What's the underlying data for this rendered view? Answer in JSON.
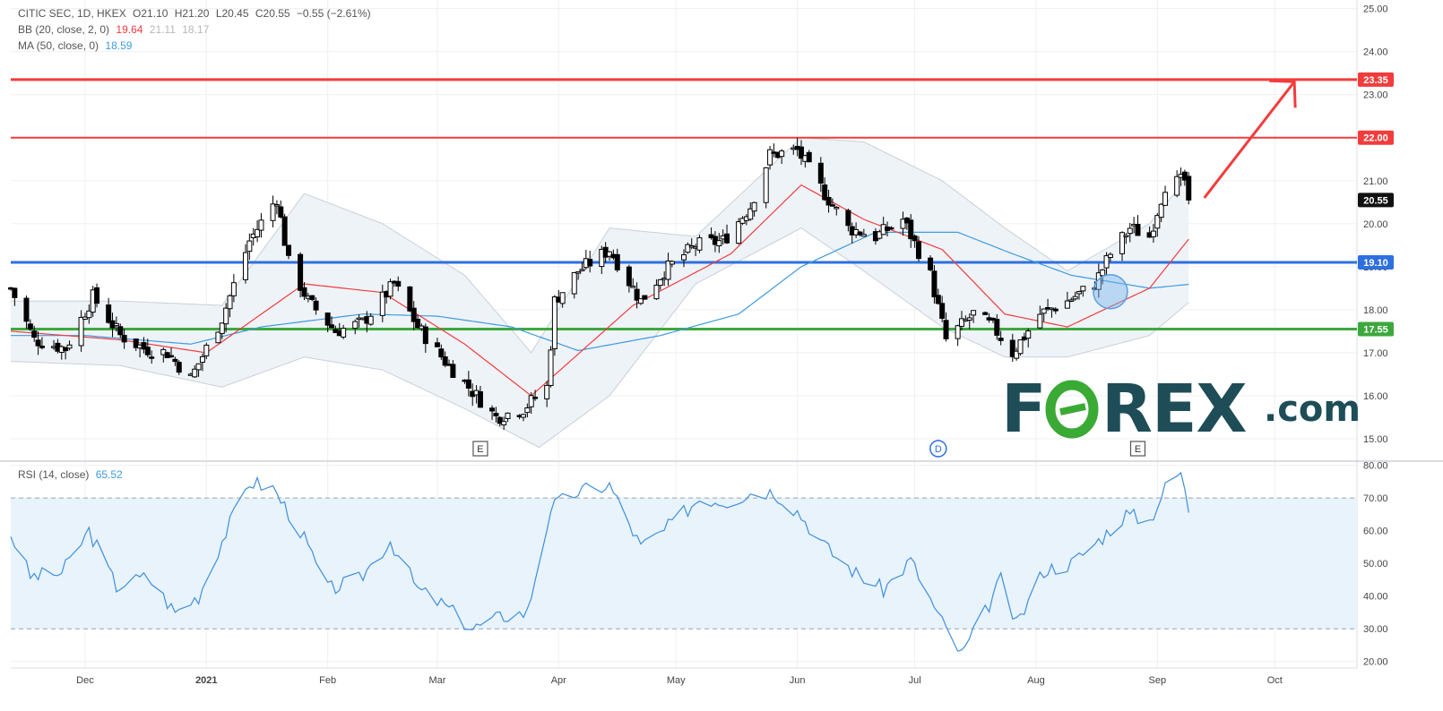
{
  "header": {
    "symbol": "CITIC SEC, 1D, HKEX",
    "open": "O21.10",
    "high": "H21.20",
    "low": "L20.45",
    "close": "C20.55",
    "change": "−0.55 (−2.61%)",
    "bb_label": "BB (20, close, 2, 0)",
    "bb_basis": "19.64",
    "bb_upper": "21.11",
    "bb_lower": "18.17",
    "ma_label": "MA (50, close, 0)",
    "ma_value": "18.59",
    "rsi_label": "RSI (14, close)",
    "rsi_value": "65.52"
  },
  "logo": {
    "part1": "F",
    "part2": "REX",
    "part3": ".com"
  },
  "colors": {
    "up": "#ffffff",
    "down": "#000000",
    "wick": "#000000",
    "resistance": "#f23c3c",
    "pivot": "#2e6fe0",
    "support": "#3ea83e",
    "bb_basis": "#f23c3c",
    "ma": "#3d9be0",
    "bb_fill": "#eef3f8",
    "rsi_line": "#3f8fdc",
    "rsi_fill": "#e8f3fc",
    "arrow": "#f23c3c",
    "logo": "#1e4d57",
    "logo_o": "#3aaa35"
  },
  "chart_data": {
    "type": "candlestick",
    "title": "CITIC SEC, 1D, HKEX",
    "ylim": [
      14.5,
      25.2
    ],
    "y_ticks": [
      "15.00",
      "16.00",
      "17.00",
      "18.00",
      "19.00",
      "20.00",
      "21.00",
      "22.00",
      "23.00",
      "24.00",
      "25.00"
    ],
    "x_labels": [
      "Dec",
      "2021",
      "Feb",
      "Mar",
      "Apr",
      "May",
      "Jun",
      "Jul",
      "Aug",
      "Sep",
      "Oct"
    ],
    "last_price": "20.55",
    "horizontal_levels": [
      {
        "value": "23.35",
        "color": "#f23c3c"
      },
      {
        "value": "22.00",
        "color": "#f23c3c"
      },
      {
        "value": "19.10",
        "color": "#2e6fe0"
      },
      {
        "value": "17.55",
        "color": "#3ea83e"
      }
    ],
    "event_markers": [
      {
        "label": "E",
        "date": "2021-03-12"
      },
      {
        "label": "D",
        "date": "2021-07-07"
      },
      {
        "label": "E",
        "date": "2021-08-27"
      }
    ],
    "price_keypoints": [
      [
        "2020-11-12",
        18.5
      ],
      [
        "2020-11-18",
        17.3
      ],
      [
        "2020-11-26",
        17.1
      ],
      [
        "2020-12-03",
        18.3
      ],
      [
        "2020-12-10",
        17.4
      ],
      [
        "2020-12-16",
        17.1
      ],
      [
        "2020-12-22",
        17.0
      ],
      [
        "2020-12-28",
        16.4
      ],
      [
        "2021-01-05",
        17.8
      ],
      [
        "2021-01-12",
        19.6
      ],
      [
        "2021-01-19",
        20.6
      ],
      [
        "2021-01-22",
        19.1
      ],
      [
        "2021-01-27",
        18.2
      ],
      [
        "2021-02-03",
        17.5
      ],
      [
        "2021-02-10",
        17.7
      ],
      [
        "2021-02-18",
        18.6
      ],
      [
        "2021-02-24",
        17.6
      ],
      [
        "2021-03-03",
        16.8
      ],
      [
        "2021-03-09",
        16.2
      ],
      [
        "2021-03-16",
        15.5
      ],
      [
        "2021-03-23",
        15.7
      ],
      [
        "2021-03-29",
        16.2
      ],
      [
        "2021-03-31",
        18.2
      ],
      [
        "2021-04-06",
        18.9
      ],
      [
        "2021-04-14",
        19.4
      ],
      [
        "2021-04-22",
        18.2
      ],
      [
        "2021-04-28",
        18.9
      ],
      [
        "2021-05-06",
        19.5
      ],
      [
        "2021-05-13",
        19.6
      ],
      [
        "2021-05-20",
        20.4
      ],
      [
        "2021-05-25",
        21.6
      ],
      [
        "2021-06-01",
        21.7
      ],
      [
        "2021-06-08",
        20.7
      ],
      [
        "2021-06-14",
        19.9
      ],
      [
        "2021-06-21",
        19.7
      ],
      [
        "2021-06-28",
        20.1
      ],
      [
        "2021-07-05",
        18.8
      ],
      [
        "2021-07-09",
        17.3
      ],
      [
        "2021-07-16",
        17.9
      ],
      [
        "2021-07-21",
        17.6
      ],
      [
        "2021-07-26",
        17.0
      ],
      [
        "2021-08-02",
        17.9
      ],
      [
        "2021-08-09",
        18.2
      ],
      [
        "2021-08-16",
        18.6
      ],
      [
        "2021-08-20",
        19.3
      ],
      [
        "2021-08-25",
        19.9
      ],
      [
        "2021-08-30",
        19.7
      ],
      [
        "2021-09-03",
        20.9
      ],
      [
        "2021-09-08",
        21.0
      ],
      [
        "2021-09-09",
        20.55
      ]
    ],
    "ma50_keypoints": [
      [
        "2020-11-12",
        17.4
      ],
      [
        "2020-12-01",
        17.4
      ],
      [
        "2020-12-28",
        17.2
      ],
      [
        "2021-01-15",
        17.6
      ],
      [
        "2021-02-10",
        17.9
      ],
      [
        "2021-03-01",
        17.85
      ],
      [
        "2021-03-20",
        17.6
      ],
      [
        "2021-04-06",
        17.05
      ],
      [
        "2021-04-27",
        17.4
      ],
      [
        "2021-05-17",
        17.9
      ],
      [
        "2021-06-02",
        19.0
      ],
      [
        "2021-06-21",
        19.8
      ],
      [
        "2021-07-12",
        19.8
      ],
      [
        "2021-07-26",
        19.3
      ],
      [
        "2021-08-10",
        18.8
      ],
      [
        "2021-08-30",
        18.5
      ],
      [
        "2021-09-09",
        18.59
      ]
    ],
    "bb_basis_keypoints": [
      [
        "2020-11-12",
        17.5
      ],
      [
        "2020-12-10",
        17.3
      ],
      [
        "2021-01-01",
        17.0
      ],
      [
        "2021-01-26",
        18.6
      ],
      [
        "2021-02-15",
        18.4
      ],
      [
        "2021-03-08",
        17.2
      ],
      [
        "2021-03-25",
        16.0
      ],
      [
        "2021-04-20",
        18.1
      ],
      [
        "2021-05-15",
        19.3
      ],
      [
        "2021-06-02",
        20.9
      ],
      [
        "2021-06-18",
        20.1
      ],
      [
        "2021-07-08",
        19.4
      ],
      [
        "2021-07-24",
        17.9
      ],
      [
        "2021-08-09",
        17.6
      ],
      [
        "2021-08-30",
        18.5
      ],
      [
        "2021-09-09",
        19.64
      ]
    ],
    "bb_upper_keypoints": [
      [
        "2020-11-12",
        18.2
      ],
      [
        "2020-12-10",
        18.2
      ],
      [
        "2021-01-05",
        18.1
      ],
      [
        "2021-01-26",
        20.7
      ],
      [
        "2021-02-15",
        20.0
      ],
      [
        "2021-03-08",
        18.8
      ],
      [
        "2021-03-25",
        17.0
      ],
      [
        "2021-04-14",
        19.9
      ],
      [
        "2021-05-06",
        19.7
      ],
      [
        "2021-06-02",
        22.0
      ],
      [
        "2021-06-18",
        21.9
      ],
      [
        "2021-07-08",
        21.0
      ],
      [
        "2021-07-24",
        19.9
      ],
      [
        "2021-08-09",
        18.9
      ],
      [
        "2021-08-30",
        20.0
      ],
      [
        "2021-09-09",
        21.11
      ]
    ],
    "bb_lower_keypoints": [
      [
        "2020-11-12",
        16.8
      ],
      [
        "2020-12-10",
        16.7
      ],
      [
        "2021-01-05",
        16.2
      ],
      [
        "2021-01-26",
        16.9
      ],
      [
        "2021-02-15",
        16.6
      ],
      [
        "2021-03-08",
        15.7
      ],
      [
        "2021-03-27",
        14.8
      ],
      [
        "2021-04-14",
        16.0
      ],
      [
        "2021-05-06",
        18.6
      ],
      [
        "2021-06-02",
        19.9
      ],
      [
        "2021-06-18",
        18.9
      ],
      [
        "2021-07-08",
        17.6
      ],
      [
        "2021-07-24",
        16.9
      ],
      [
        "2021-08-09",
        16.9
      ],
      [
        "2021-08-30",
        17.4
      ],
      [
        "2021-09-09",
        18.17
      ]
    ],
    "rsi": {
      "ylim": [
        18,
        81
      ],
      "y_ticks": [
        "20.00",
        "30.00",
        "40.00",
        "50.00",
        "60.00",
        "70.00",
        "80.00"
      ],
      "band": [
        30,
        70
      ],
      "keypoints": [
        [
          "2020-11-12",
          59
        ],
        [
          "2020-11-17",
          46
        ],
        [
          "2020-11-25",
          47
        ],
        [
          "2020-12-02",
          60
        ],
        [
          "2020-12-09",
          43
        ],
        [
          "2020-12-17",
          46
        ],
        [
          "2020-12-24",
          35
        ],
        [
          "2020-12-30",
          40
        ],
        [
          "2021-01-05",
          57
        ],
        [
          "2021-01-12",
          75
        ],
        [
          "2021-01-18",
          73
        ],
        [
          "2021-01-25",
          60
        ],
        [
          "2021-02-01",
          42
        ],
        [
          "2021-02-09",
          45
        ],
        [
          "2021-02-17",
          57
        ],
        [
          "2021-02-24",
          42
        ],
        [
          "2021-03-03",
          37
        ],
        [
          "2021-03-10",
          30
        ],
        [
          "2021-03-18",
          34
        ],
        [
          "2021-03-24",
          35
        ],
        [
          "2021-03-30",
          67
        ],
        [
          "2021-04-06",
          72
        ],
        [
          "2021-04-14",
          74
        ],
        [
          "2021-04-22",
          55
        ],
        [
          "2021-04-28",
          60
        ],
        [
          "2021-05-07",
          70
        ],
        [
          "2021-05-14",
          69
        ],
        [
          "2021-05-21",
          72
        ],
        [
          "2021-05-26",
          72
        ],
        [
          "2021-06-01",
          66
        ],
        [
          "2021-06-09",
          54
        ],
        [
          "2021-06-16",
          47
        ],
        [
          "2021-06-23",
          42
        ],
        [
          "2021-06-30",
          51
        ],
        [
          "2021-07-07",
          34
        ],
        [
          "2021-07-13",
          22
        ],
        [
          "2021-07-19",
          35
        ],
        [
          "2021-07-23",
          45
        ],
        [
          "2021-07-27",
          31
        ],
        [
          "2021-08-03",
          48
        ],
        [
          "2021-08-10",
          50
        ],
        [
          "2021-08-17",
          57
        ],
        [
          "2021-08-24",
          65
        ],
        [
          "2021-08-30",
          63
        ],
        [
          "2021-09-03",
          73
        ],
        [
          "2021-09-07",
          78
        ],
        [
          "2021-09-09",
          65.52
        ]
      ]
    }
  }
}
